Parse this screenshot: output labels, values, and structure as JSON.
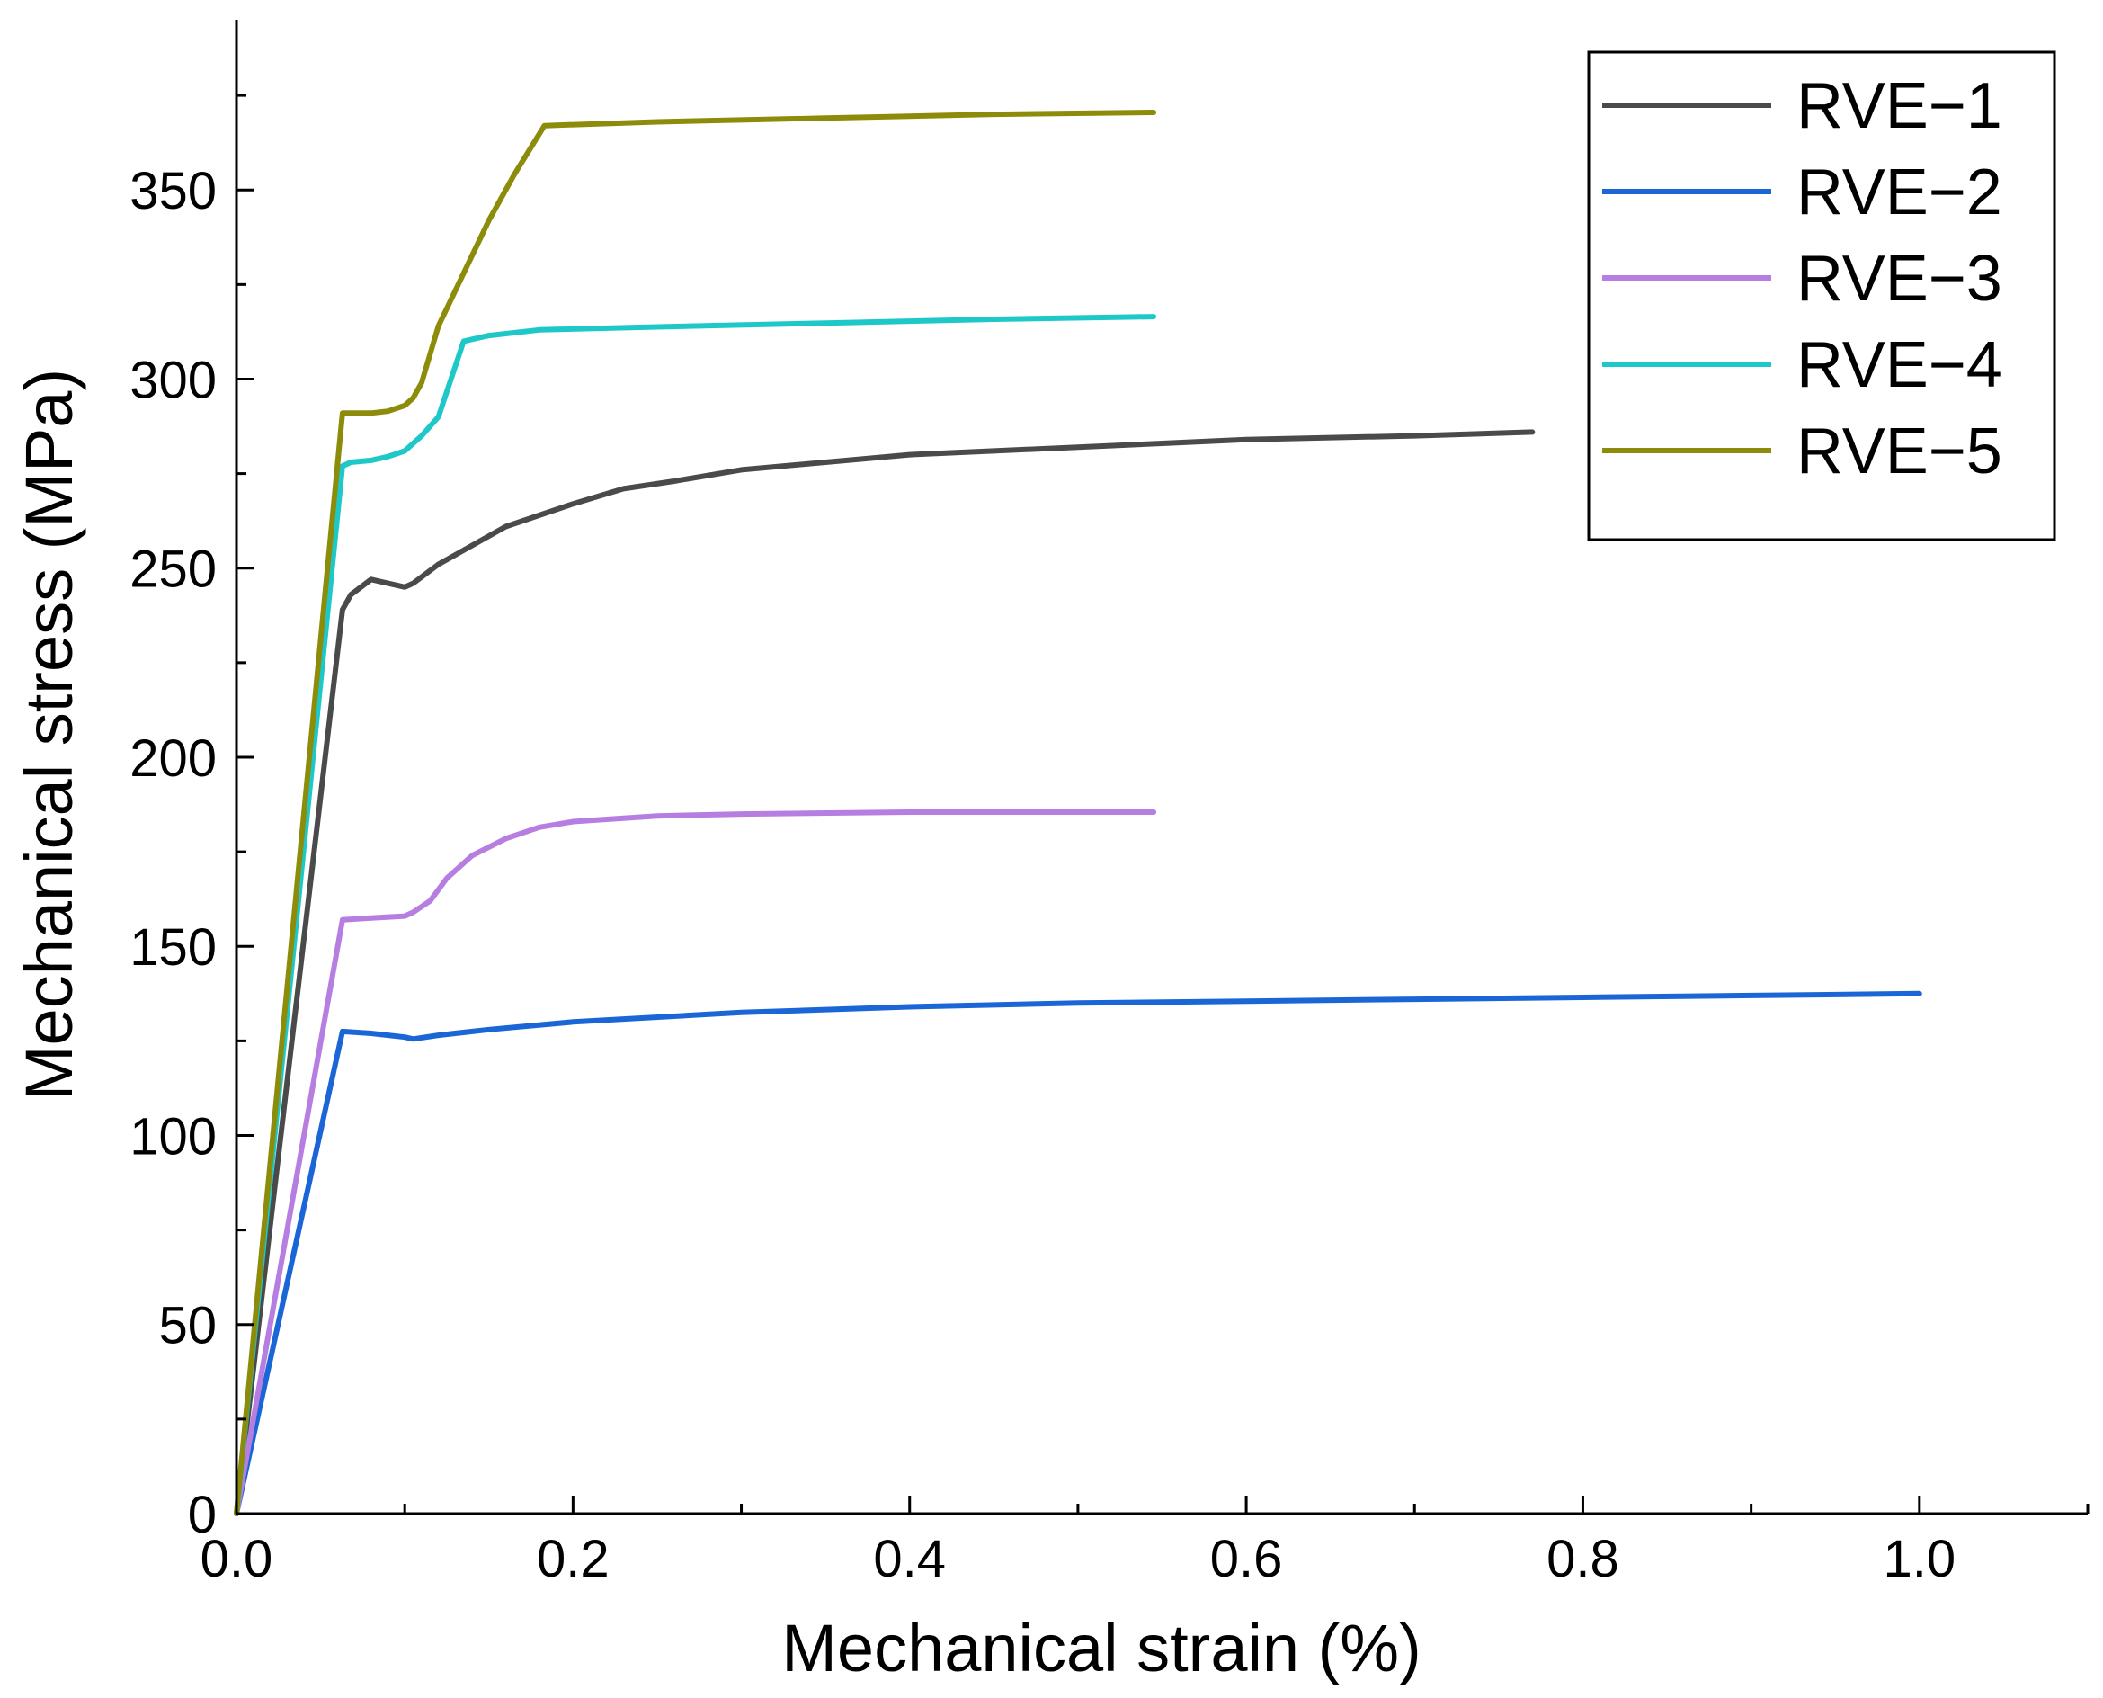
{
  "chart_data": {
    "type": "line",
    "title": "",
    "xlabel": "Mechanical strain (%)",
    "ylabel": "Mechanical stress (MPa)",
    "xlim": [
      0.0,
      1.1
    ],
    "ylim": [
      0,
      395
    ],
    "xticks": [
      0.0,
      0.2,
      0.4,
      0.6,
      0.8,
      1.0
    ],
    "xtick_labels": [
      "0.0",
      "0.2",
      "0.4",
      "0.6",
      "0.8",
      "1.0"
    ],
    "xminor": [
      0.1,
      0.3,
      0.5,
      0.7,
      0.9,
      1.1
    ],
    "yticks": [
      0,
      50,
      100,
      150,
      200,
      250,
      300,
      350
    ],
    "ytick_labels": [
      "0",
      "50",
      "100",
      "150",
      "200",
      "250",
      "300",
      "350"
    ],
    "yminor": [
      25,
      75,
      125,
      175,
      225,
      275,
      325,
      375
    ],
    "grid": false,
    "legend_position": "top-right",
    "series": [
      {
        "name": "RVE−1",
        "color": "#4a4a4a",
        "x": [
          0,
          0.063,
          0.068,
          0.08,
          0.09,
          0.1,
          0.105,
          0.12,
          0.14,
          0.16,
          0.18,
          0.2,
          0.23,
          0.26,
          0.3,
          0.35,
          0.4,
          0.45,
          0.5,
          0.55,
          0.6,
          0.7,
          0.77
        ],
        "y": [
          0,
          239,
          243,
          247,
          246,
          245,
          246,
          251,
          256,
          261,
          264,
          267,
          271,
          273,
          276,
          278,
          280,
          281,
          282,
          283,
          284,
          285,
          286
        ]
      },
      {
        "name": "RVE−2",
        "color": "#1a66d6",
        "x": [
          0,
          0.063,
          0.08,
          0.1,
          0.105,
          0.12,
          0.15,
          0.2,
          0.3,
          0.4,
          0.5,
          0.6,
          0.7,
          0.8,
          0.9,
          1.0
        ],
        "y": [
          0,
          127.5,
          127,
          126,
          125.5,
          126.5,
          128,
          130,
          132.5,
          134,
          135,
          135.5,
          136,
          136.5,
          137,
          137.5
        ]
      },
      {
        "name": "RVE−3",
        "color": "#b57ee0",
        "x": [
          0,
          0.063,
          0.08,
          0.1,
          0.105,
          0.115,
          0.125,
          0.14,
          0.16,
          0.18,
          0.2,
          0.25,
          0.3,
          0.4,
          0.545
        ],
        "y": [
          0,
          157,
          157.5,
          158,
          159,
          162,
          168,
          174,
          178.5,
          181.5,
          183,
          184.5,
          185,
          185.5,
          185.5
        ]
      },
      {
        "name": "RVE−4",
        "color": "#1ec8c8",
        "x": [
          0,
          0.063,
          0.068,
          0.08,
          0.09,
          0.1,
          0.11,
          0.12,
          0.135,
          0.15,
          0.18,
          0.25,
          0.35,
          0.45,
          0.545
        ],
        "y": [
          0,
          277,
          278,
          278.5,
          279.5,
          281,
          285,
          290,
          310,
          311.5,
          313,
          313.8,
          314.8,
          315.8,
          316.5
        ]
      },
      {
        "name": "RVE−5",
        "color": "#8c8c0a",
        "x": [
          0,
          0.063,
          0.07,
          0.08,
          0.09,
          0.1,
          0.105,
          0.11,
          0.12,
          0.135,
          0.15,
          0.165,
          0.183,
          0.25,
          0.35,
          0.45,
          0.545
        ],
        "y": [
          0,
          291,
          291,
          291,
          291.5,
          293,
          295,
          299,
          314,
          328,
          342,
          354,
          367,
          368,
          369,
          370,
          370.5
        ]
      }
    ]
  }
}
